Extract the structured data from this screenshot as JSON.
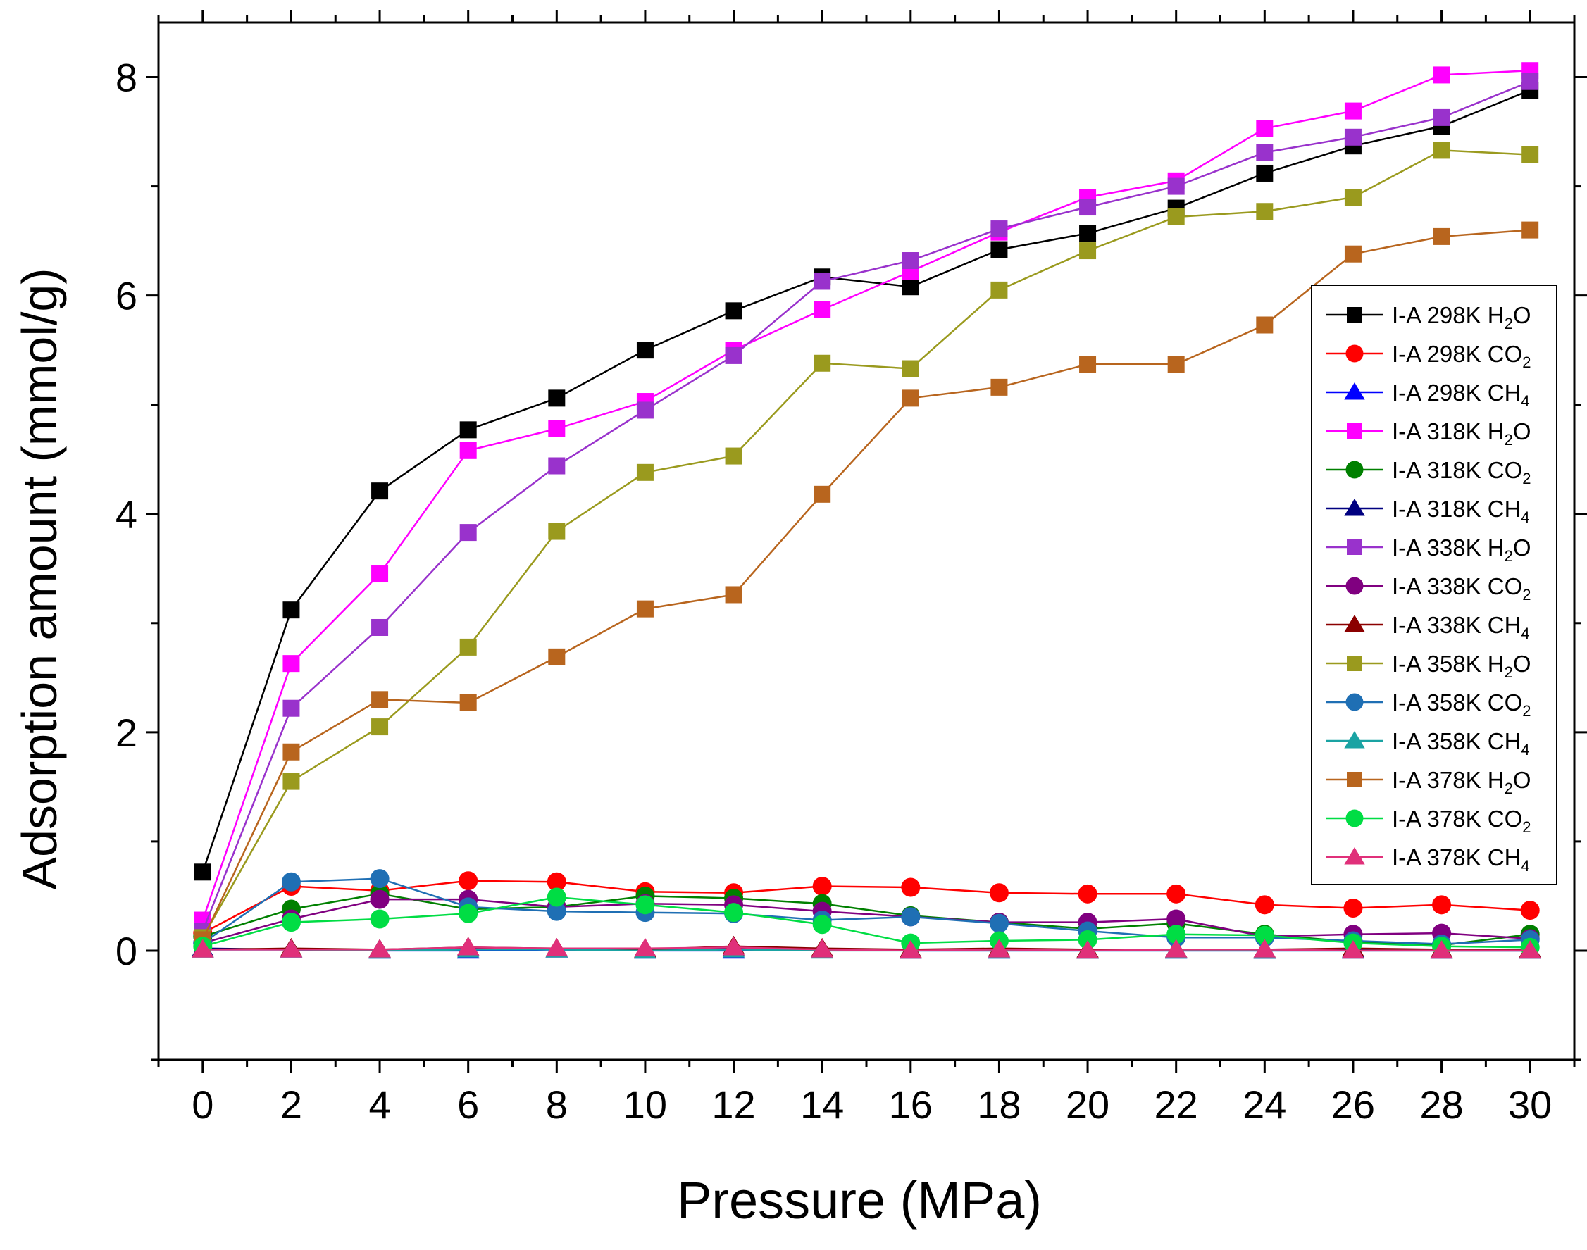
{
  "chart_data": {
    "type": "line",
    "title": "",
    "xlabel": "Pressure (MPa)",
    "ylabel": "Adsorption amount (mmol/g)",
    "xlim": [
      -1,
      31
    ],
    "ylim": [
      -1,
      8.5
    ],
    "xticks": [
      0,
      2,
      4,
      6,
      8,
      10,
      12,
      14,
      16,
      18,
      20,
      22,
      24,
      26,
      28,
      30
    ],
    "yticks": [
      0,
      2,
      4,
      6,
      8
    ],
    "grid": false,
    "legend_position": "right",
    "x": [
      0,
      2,
      4,
      6,
      8,
      10,
      12,
      14,
      16,
      18,
      20,
      22,
      24,
      26,
      28,
      30
    ],
    "series": [
      {
        "name": "I-A  298K H2O",
        "prefix": "I-A  298K",
        "gas": "H",
        "sub": "2",
        "suffix": "O",
        "marker": "square",
        "color": "#000000",
        "values": [
          0.72,
          3.12,
          4.21,
          4.77,
          5.06,
          5.5,
          5.86,
          6.17,
          6.08,
          6.42,
          6.57,
          6.8,
          7.12,
          7.37,
          7.55,
          7.88
        ]
      },
      {
        "name": "I-A  298K CO2",
        "prefix": "I-A  298K",
        "gas": "CO",
        "sub": "2",
        "suffix": "",
        "marker": "circle",
        "color": "#ff0000",
        "values": [
          0.16,
          0.59,
          0.55,
          0.64,
          0.63,
          0.54,
          0.53,
          0.59,
          0.58,
          0.53,
          0.52,
          0.52,
          0.42,
          0.39,
          0.42,
          0.37
        ]
      },
      {
        "name": "I-A  298K CH4",
        "prefix": "I-A  298K",
        "gas": "CH",
        "sub": "4",
        "suffix": "",
        "marker": "triangle",
        "color": "#0000ff",
        "values": [
          0.01,
          0.01,
          0.0,
          0.0,
          0.01,
          0.0,
          0.0,
          0.01,
          0.0,
          0.0,
          0.0,
          0.0,
          0.0,
          0.0,
          0.0,
          0.0
        ]
      },
      {
        "name": "I-A  318K H2O",
        "prefix": "I-A  318K",
        "gas": "H",
        "sub": "2",
        "suffix": "O",
        "marker": "square",
        "color": "#ff00ff",
        "values": [
          0.28,
          2.63,
          3.45,
          4.58,
          4.78,
          5.03,
          5.5,
          5.87,
          6.22,
          6.58,
          6.9,
          7.05,
          7.53,
          7.69,
          8.02,
          8.06
        ]
      },
      {
        "name": "I-A  318K CO2",
        "prefix": "I-A  318K",
        "gas": "CO",
        "sub": "2",
        "suffix": "",
        "marker": "circle",
        "color": "#008000",
        "values": [
          0.13,
          0.38,
          0.52,
          0.38,
          0.4,
          0.5,
          0.48,
          0.43,
          0.32,
          0.26,
          0.2,
          0.25,
          0.15,
          0.08,
          0.05,
          0.15
        ]
      },
      {
        "name": "I-A  318K CH4",
        "prefix": "I-A  318K",
        "gas": "CH",
        "sub": "4",
        "suffix": "",
        "marker": "triangle",
        "color": "#000080",
        "values": [
          0.02,
          0.01,
          0.01,
          0.02,
          0.01,
          0.01,
          0.02,
          0.01,
          0.0,
          0.01,
          0.0,
          0.01,
          0.0,
          0.01,
          0.0,
          0.0
        ]
      },
      {
        "name": "I-A  338K H2O",
        "prefix": "I-A  338K",
        "gas": "H",
        "sub": "2",
        "suffix": "O",
        "marker": "square",
        "color": "#9932cc",
        "values": [
          0.18,
          2.22,
          2.96,
          3.83,
          4.44,
          4.95,
          5.45,
          6.13,
          6.32,
          6.61,
          6.81,
          7.0,
          7.31,
          7.45,
          7.63,
          7.96
        ]
      },
      {
        "name": "I-A  338K CO2",
        "prefix": "I-A  338K",
        "gas": "CO",
        "sub": "2",
        "suffix": "",
        "marker": "circle",
        "color": "#800080",
        "values": [
          0.07,
          0.29,
          0.47,
          0.47,
          0.4,
          0.43,
          0.42,
          0.36,
          0.31,
          0.26,
          0.26,
          0.29,
          0.13,
          0.15,
          0.16,
          0.11
        ]
      },
      {
        "name": "I-A  338K CH4",
        "prefix": "I-A  338K",
        "gas": "CH",
        "sub": "4",
        "suffix": "",
        "marker": "triangle",
        "color": "#8b0000",
        "values": [
          0.01,
          0.02,
          0.01,
          0.03,
          0.02,
          0.01,
          0.04,
          0.02,
          0.01,
          0.02,
          0.01,
          0.01,
          0.01,
          0.02,
          0.01,
          0.01
        ]
      },
      {
        "name": "I-A  358K H2O",
        "prefix": "I-A  358K",
        "gas": "H",
        "sub": "2",
        "suffix": "O",
        "marker": "square",
        "color": "#9a9a1e",
        "values": [
          0.12,
          1.55,
          2.05,
          2.78,
          3.84,
          4.38,
          4.53,
          5.38,
          5.33,
          6.05,
          6.41,
          6.72,
          6.77,
          6.9,
          7.33,
          7.29
        ]
      },
      {
        "name": "I-A  358K CO2",
        "prefix": "I-A  358K",
        "gas": "CO",
        "sub": "2",
        "suffix": "",
        "marker": "circle",
        "color": "#1f6fb4",
        "values": [
          0.07,
          0.63,
          0.66,
          0.4,
          0.36,
          0.35,
          0.34,
          0.28,
          0.31,
          0.25,
          0.18,
          0.12,
          0.12,
          0.09,
          0.06,
          0.1
        ]
      },
      {
        "name": "I-A  358K CH4",
        "prefix": "I-A  358K",
        "gas": "CH",
        "sub": "4",
        "suffix": "",
        "marker": "triangle",
        "color": "#1aa3a3",
        "values": [
          0.01,
          0.01,
          0.0,
          0.01,
          0.01,
          0.0,
          0.01,
          0.0,
          0.0,
          0.0,
          0.0,
          0.0,
          0.0,
          0.0,
          0.0,
          0.0
        ]
      },
      {
        "name": "I-A  378K H2O",
        "prefix": "I-A  378K",
        "gas": "H",
        "sub": "2",
        "suffix": "O",
        "marker": "square",
        "color": "#b8651e",
        "values": [
          0.1,
          1.82,
          2.3,
          2.27,
          2.69,
          3.13,
          3.26,
          4.18,
          5.06,
          5.16,
          5.37,
          5.37,
          5.73,
          6.38,
          6.54,
          6.6
        ]
      },
      {
        "name": "I-A  378K CO2",
        "prefix": "I-A  378K",
        "gas": "CO",
        "sub": "2",
        "suffix": "",
        "marker": "circle",
        "color": "#00dd44",
        "values": [
          0.04,
          0.26,
          0.29,
          0.34,
          0.49,
          0.42,
          0.35,
          0.24,
          0.07,
          0.09,
          0.1,
          0.15,
          0.14,
          0.07,
          0.04,
          0.03
        ]
      },
      {
        "name": "I-A  378K CH4",
        "prefix": "I-A  378K",
        "gas": "CH",
        "sub": "4",
        "suffix": "",
        "marker": "triangle",
        "color": "#e0307a",
        "values": [
          0.01,
          0.01,
          0.01,
          0.03,
          0.02,
          0.02,
          0.03,
          0.01,
          0.0,
          0.01,
          0.0,
          0.01,
          0.01,
          0.0,
          0.0,
          0.0
        ]
      }
    ]
  }
}
